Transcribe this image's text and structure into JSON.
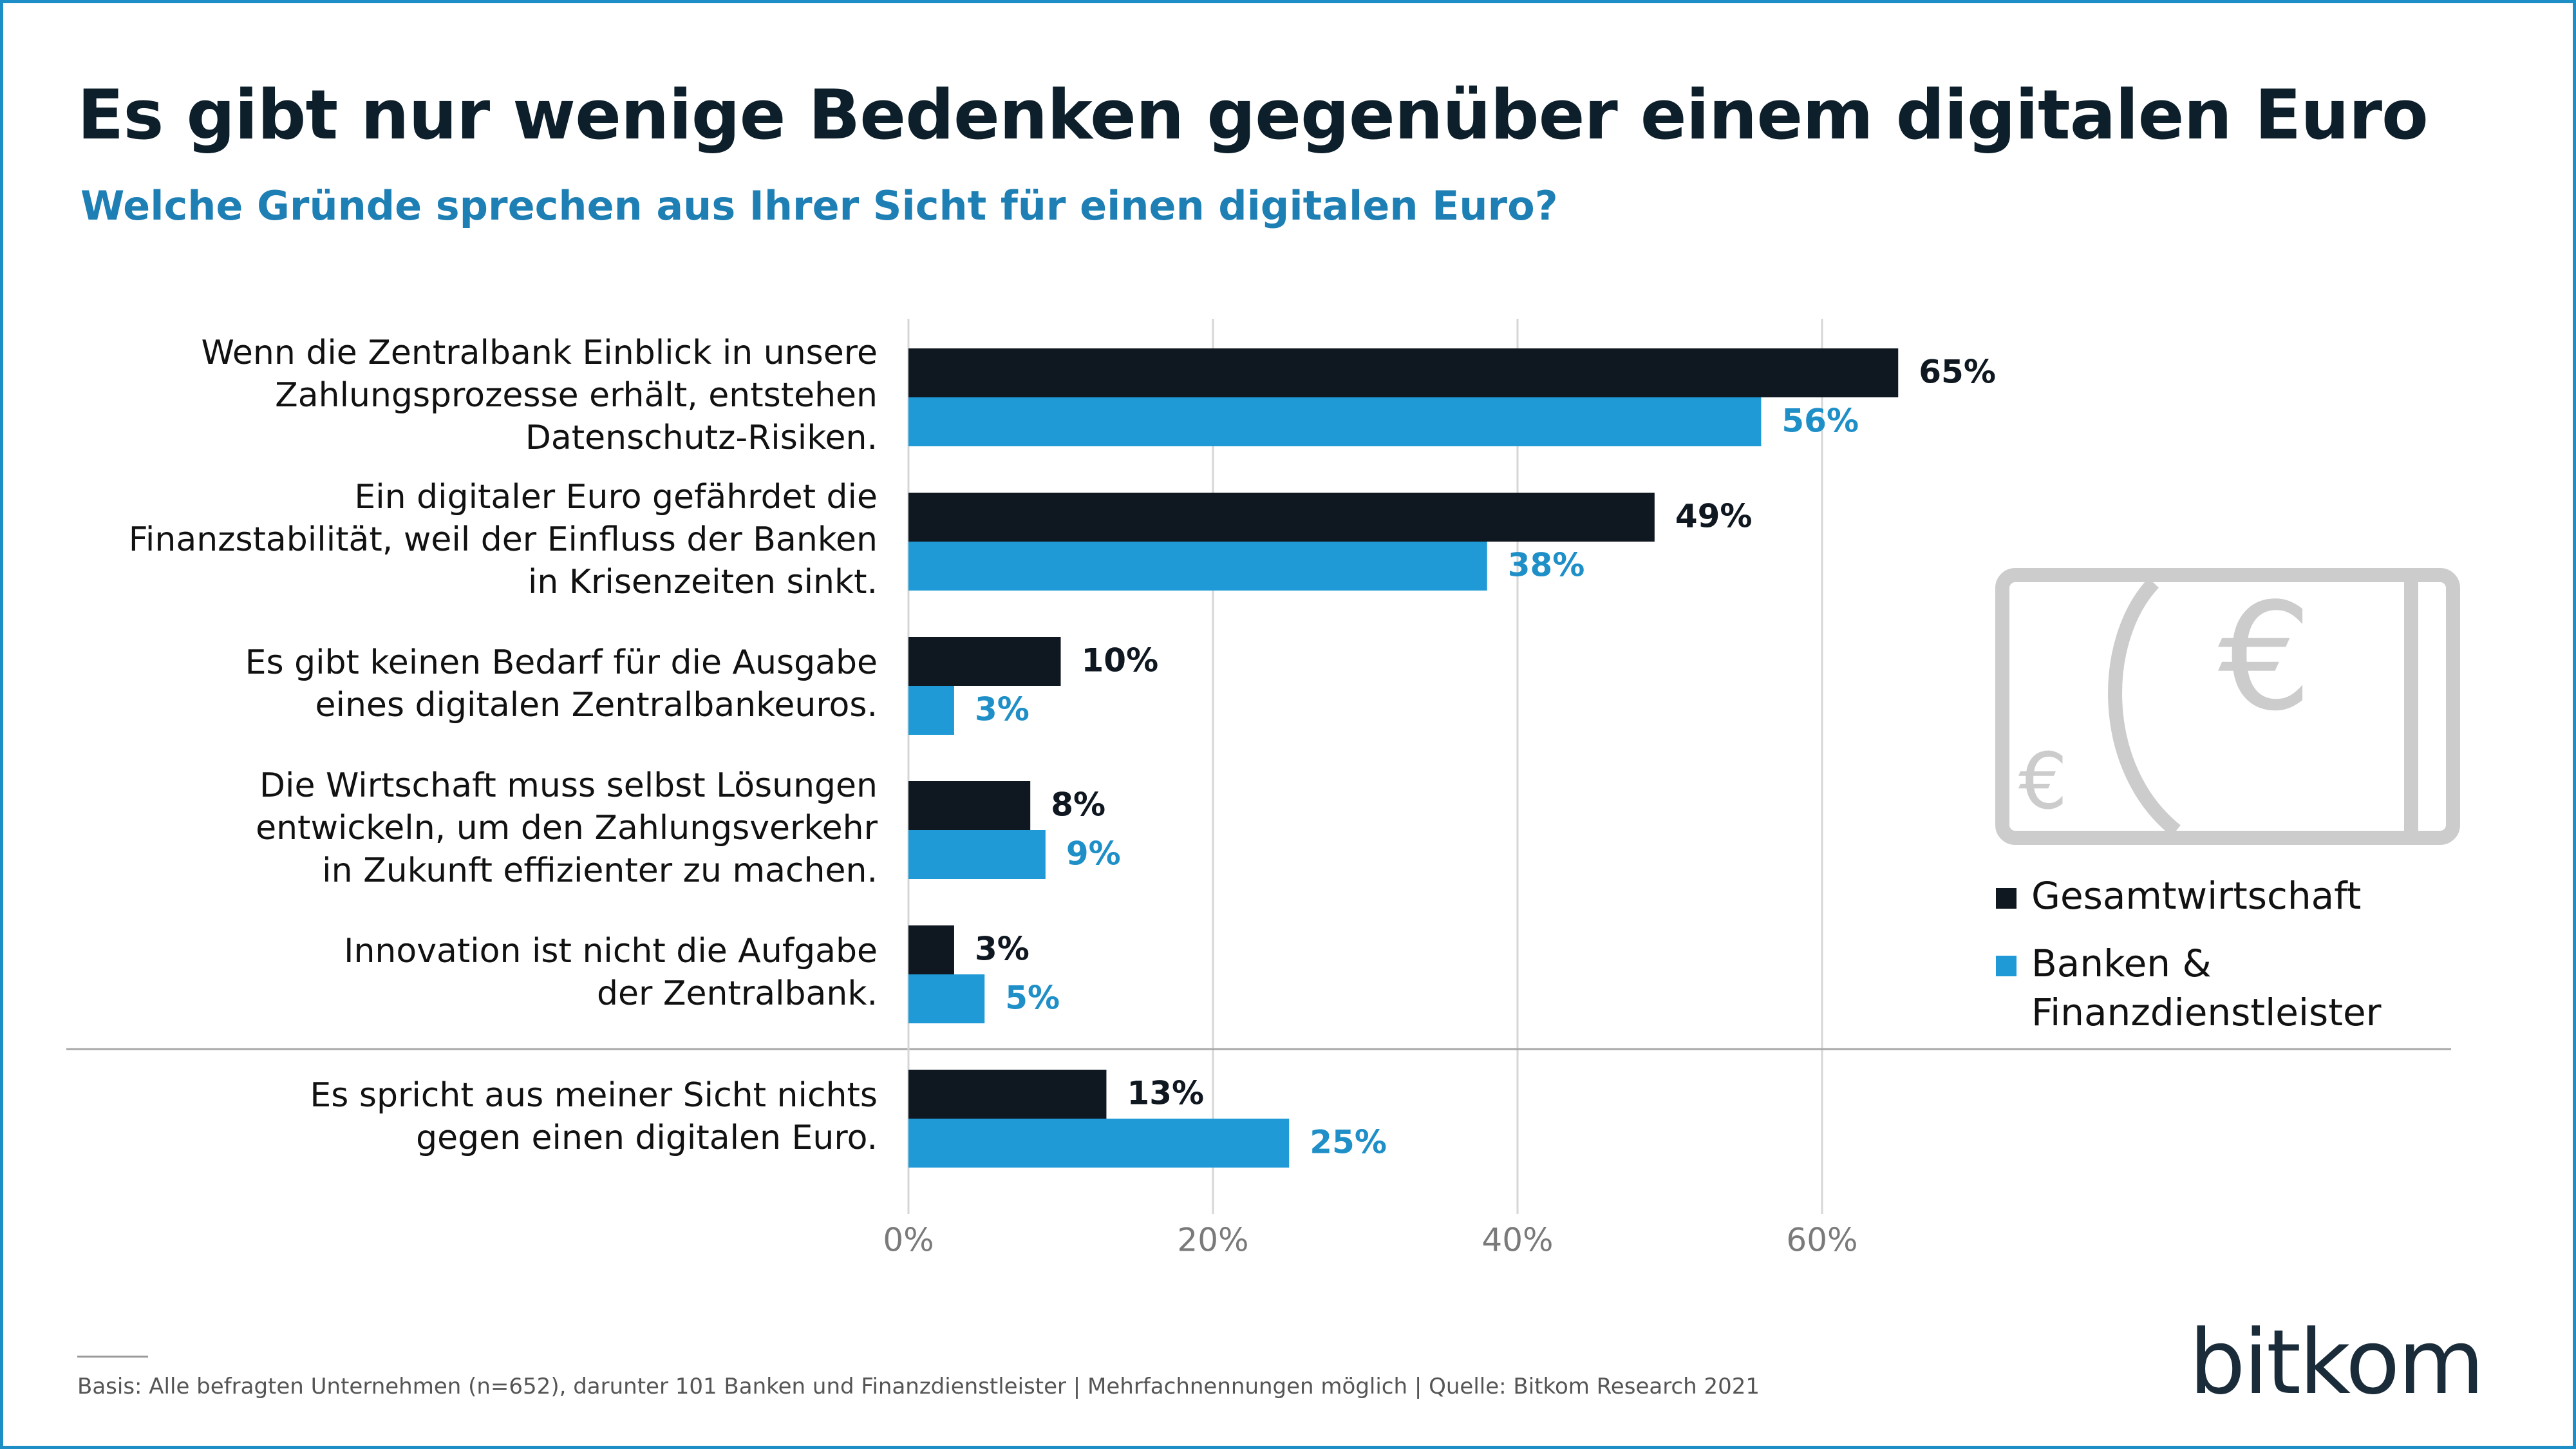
{
  "title": "Es gibt nur wenige Bedenken gegenüber einem digitalen Euro",
  "subtitle": "Welche Gründe sprechen aus Ihrer Sicht für einen digitalen Euro?",
  "footnote": "Basis: Alle befragten Unternehmen (n=652), darunter 101 Banken und Finanzdienstleister | Mehrfachnennungen möglich | Quelle: Bitkom Research 2021",
  "logo_text": "bitkom",
  "colors": {
    "gesamtwirtschaft": "#0f1720",
    "banken": "#1f9ad6",
    "grid": "#d6d6d6",
    "banknote_icon": "#cccccc"
  },
  "icon": "euro-banknote-icon",
  "chart_data": {
    "type": "bar",
    "orientation": "horizontal",
    "categories": [
      [
        "Wenn die Zentralbank Einblick in unsere",
        "Zahlungsprozesse erhält, entstehen",
        "Datenschutz-Risiken."
      ],
      [
        "Ein digitaler Euro gefährdet die",
        "Finanzstabilität, weil der Einfluss der Banken",
        "in Krisenzeiten sinkt."
      ],
      [
        "Es gibt keinen Bedarf für die Ausgabe",
        "eines digitalen Zentralbankeuros."
      ],
      [
        "Die Wirtschaft muss selbst Lösungen",
        "entwickeln, um den Zahlungsverkehr",
        "in Zukunft effizienter zu machen."
      ],
      [
        "Innovation ist nicht die Aufgabe",
        "der Zentralbank."
      ],
      [
        "Es spricht aus meiner Sicht nichts",
        "gegen einen digitalen Euro."
      ]
    ],
    "series": [
      {
        "name": "Gesamtwirtschaft",
        "values": [
          65,
          49,
          10,
          8,
          3,
          13
        ],
        "color": "#0f1720"
      },
      {
        "name": "Banken & Finanzdienstleister",
        "legend_lines": [
          "Banken &",
          "Finanzdienstleister"
        ],
        "values": [
          56,
          38,
          3,
          9,
          5,
          25
        ],
        "color": "#1f9ad6"
      }
    ],
    "value_suffix": "%",
    "xlim": [
      0,
      70
    ],
    "xticks": [
      0,
      20,
      40,
      60
    ],
    "xtick_labels": [
      "0%",
      "20%",
      "40%",
      "60%"
    ],
    "grid": true,
    "separator_before_last_category": true,
    "legend_position": "right"
  }
}
